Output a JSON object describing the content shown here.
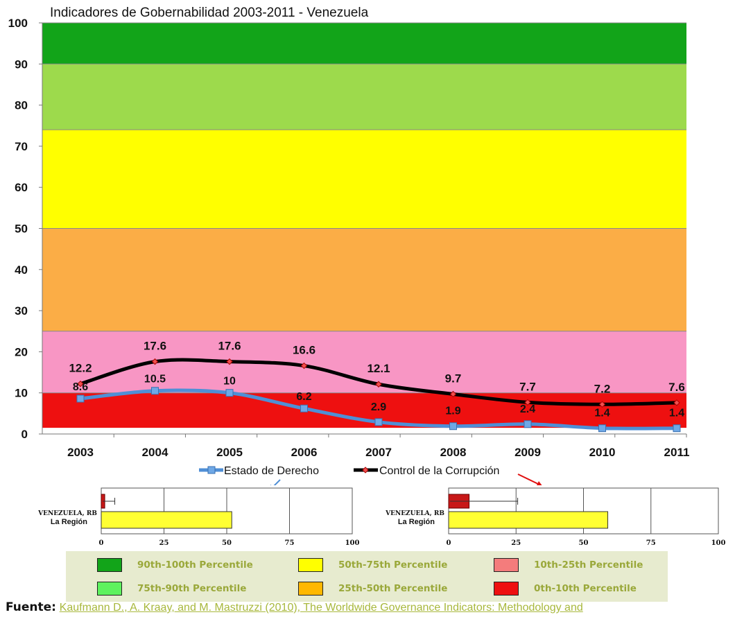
{
  "chart_data": [
    {
      "type": "line",
      "title": "Indicadores de Gobernabilidad 2003-2011 - Venezuela",
      "x": [
        "2003",
        "2004",
        "2005",
        "2006",
        "2007",
        "2008",
        "2009",
        "2010",
        "2011"
      ],
      "ylim": [
        0,
        100
      ],
      "yticks": [
        "0",
        "10",
        "20",
        "30",
        "40",
        "50",
        "60",
        "70",
        "80",
        "90",
        "100"
      ],
      "series": [
        {
          "name": "Estado de Derecho",
          "values": [
            8.6,
            10.5,
            10,
            6.2,
            2.9,
            1.9,
            2.4,
            1.4,
            1.4
          ],
          "labels": [
            "8.6",
            "10.5",
            "10",
            "6.2",
            "2.9",
            "1.9",
            "2.4",
            "1.4",
            "1.4"
          ],
          "color": "#4f8fd6"
        },
        {
          "name": "Control de la Corrupción",
          "values": [
            12.2,
            17.6,
            17.6,
            16.6,
            12.1,
            9.7,
            7.7,
            7.2,
            7.6
          ],
          "labels": [
            "12.2",
            "17.6",
            "17.6",
            "16.6",
            "12.1",
            "9.7",
            "7.7",
            "7.2",
            "7.6"
          ],
          "color": "#000000"
        }
      ],
      "bands": [
        {
          "from": 90,
          "to": 100,
          "color": "#12a419"
        },
        {
          "from": 74,
          "to": 90,
          "color": "#9dda4c"
        },
        {
          "from": 50,
          "to": 74,
          "color": "#ffff00"
        },
        {
          "from": 25,
          "to": 50,
          "color": "#fbad46"
        },
        {
          "from": 10,
          "to": 25,
          "color": "#f896c4"
        },
        {
          "from": 1.5,
          "to": 10,
          "color": "#ee1010"
        }
      ],
      "grid": false,
      "legend": "bottom"
    },
    {
      "type": "bar",
      "orientation": "horizontal",
      "categories": [
        "VENEZUELA, RB",
        "La Región"
      ],
      "values": [
        1.4,
        52
      ],
      "error": [
        4,
        null
      ],
      "xlim": [
        0,
        100
      ],
      "xticks": [
        "0",
        "25",
        "50",
        "75",
        "100"
      ],
      "colors": [
        "#c81818",
        "#ffff33"
      ]
    },
    {
      "type": "bar",
      "orientation": "horizontal",
      "categories": [
        "VENEZUELA, RB",
        "La Región"
      ],
      "values": [
        7.6,
        59
      ],
      "error": [
        18,
        null
      ],
      "xlim": [
        0,
        100
      ],
      "xticks": [
        "0",
        "25",
        "50",
        "75",
        "100"
      ],
      "colors": [
        "#c81818",
        "#ffff33"
      ]
    }
  ],
  "percentile_legend": [
    {
      "label": "90th-100th Percentile",
      "color": "#12a419"
    },
    {
      "label": "50th-75th Percentile",
      "color": "#ffff00"
    },
    {
      "label": "10th-25th Percentile",
      "color": "#f47c7c"
    },
    {
      "label": "75th-90th Percentile",
      "color": "#5ef25e"
    },
    {
      "label": "25th-50th Percentile",
      "color": "#ffb800"
    },
    {
      "label": "0th-10th Percentile",
      "color": "#ee1010"
    }
  ],
  "source": {
    "label": "Fuente:",
    "text": "Kaufmann D., A. Kraay, and M. Mastruzzi (2010), The Worldwide Governance Indicators: Methodology and"
  },
  "annotation_arrows": [
    {
      "name": "arrow-estado",
      "color": "#4f8fd6"
    },
    {
      "name": "arrow-corrupcion",
      "color": "#e01010"
    }
  ]
}
